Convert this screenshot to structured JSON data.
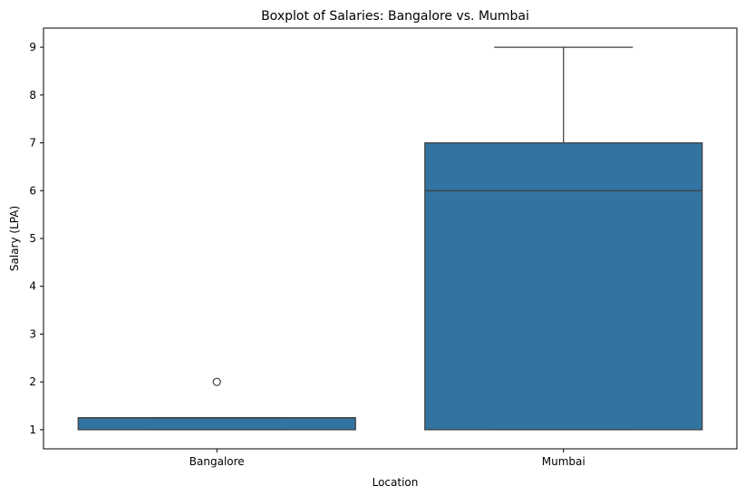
{
  "chart_data": {
    "type": "boxplot",
    "title": "Boxplot of Salaries: Bangalore vs. Mumbai",
    "xlabel": "Location",
    "ylabel": "Salary (LPA)",
    "categories": [
      "Bangalore",
      "Mumbai"
    ],
    "ylim": [
      0.6,
      9.4
    ],
    "yticks": [
      1,
      2,
      3,
      4,
      5,
      6,
      7,
      8,
      9
    ],
    "grid": false,
    "boxes": [
      {
        "category": "Bangalore",
        "whisker_low": 1,
        "q1": 1,
        "median": 1.25,
        "q3": 1.25,
        "whisker_high": 1.25,
        "outliers": [
          2
        ]
      },
      {
        "category": "Mumbai",
        "whisker_low": 1,
        "q1": 1,
        "median": 6,
        "q3": 7,
        "whisker_high": 9,
        "outliers": []
      }
    ],
    "colors": {
      "box_fill": "#3274a1",
      "line": "#3d3d3d",
      "axis": "#000000"
    }
  }
}
